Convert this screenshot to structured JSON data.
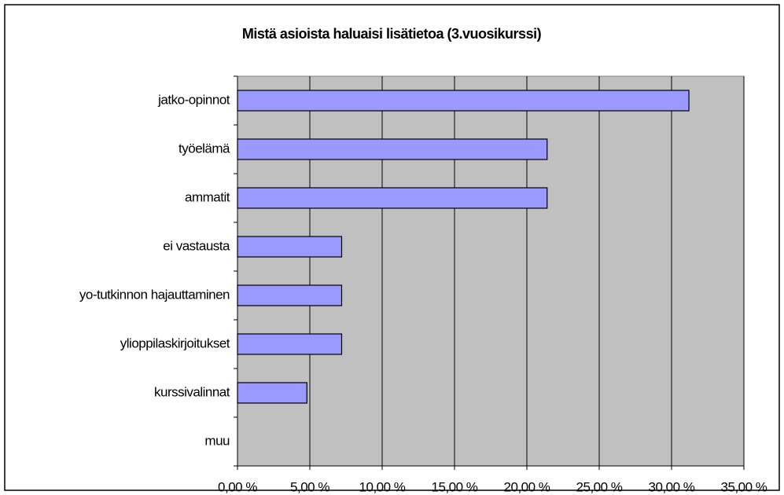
{
  "chart_data": {
    "type": "hbar",
    "title": "Mistä asioista haluaisi lisätietoa (3.vuosikurssi)",
    "categories": [
      "jatko-opinnot",
      "työelämä",
      "ammatit",
      "ei vastausta",
      "yo-tutkinnon hajauttaminen",
      "ylioppilaskirjoitukset",
      "kurssivalinnat",
      "muu"
    ],
    "values": [
      31.2,
      21.4,
      21.4,
      7.2,
      7.2,
      7.2,
      4.8,
      0
    ],
    "color": "#9999ff",
    "xlim": [
      0,
      35
    ],
    "xticks": [
      {
        "value": 0,
        "label": "0,00 %"
      },
      {
        "value": 5,
        "label": "5,00 %"
      },
      {
        "value": 10,
        "label": "10,00 %"
      },
      {
        "value": 15,
        "label": "15,00 %"
      },
      {
        "value": 20,
        "label": "20,00 %"
      },
      {
        "value": 25,
        "label": "25,00 %"
      },
      {
        "value": 30,
        "label": "30,00 %"
      },
      {
        "value": 35,
        "label": "35,00 %"
      }
    ],
    "grid": true
  }
}
